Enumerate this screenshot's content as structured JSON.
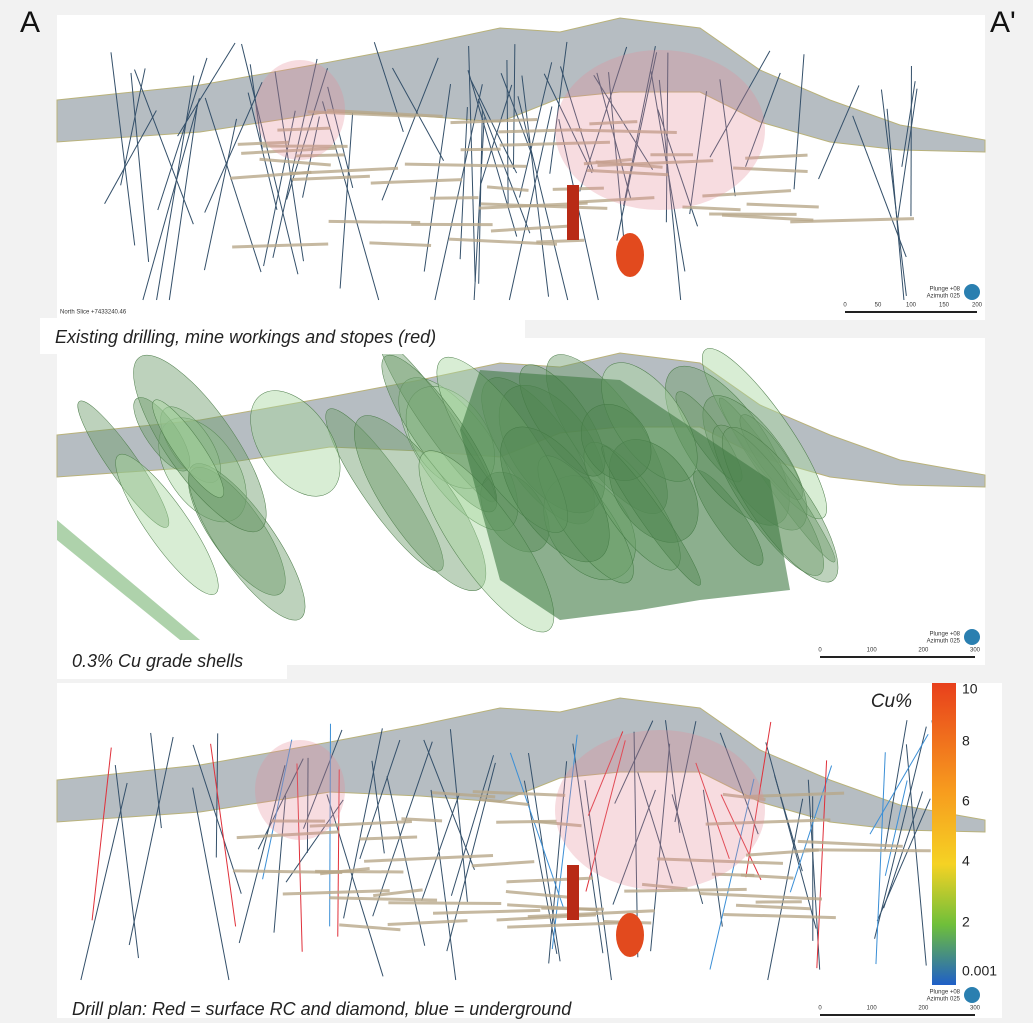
{
  "section_labels": {
    "left": "A",
    "right": "A'"
  },
  "panels": [
    {
      "caption": "Existing drilling, mine workings and stopes (red)",
      "north_slice": "North Slice +7433240.46",
      "plunge": "Plunge +08",
      "azimuth": "Azimuth 025",
      "scale_labels": [
        "0",
        "50",
        "100",
        "150",
        "200"
      ]
    },
    {
      "caption": "0.3% Cu grade shells",
      "plunge": "Plunge +08",
      "azimuth": "Azimuth 025",
      "scale_labels": [
        "0",
        "100",
        "200",
        "300"
      ]
    },
    {
      "caption": "Drill plan: Red = surface RC and diamond, blue = underground",
      "plunge": "Plunge +08",
      "azimuth": "Azimuth 025",
      "scale_labels": [
        "0",
        "100",
        "200",
        "300"
      ]
    }
  ],
  "legend": {
    "title": "Cu%",
    "labels": [
      "10",
      "8",
      "6",
      "4",
      "2",
      "0.001"
    ]
  }
}
